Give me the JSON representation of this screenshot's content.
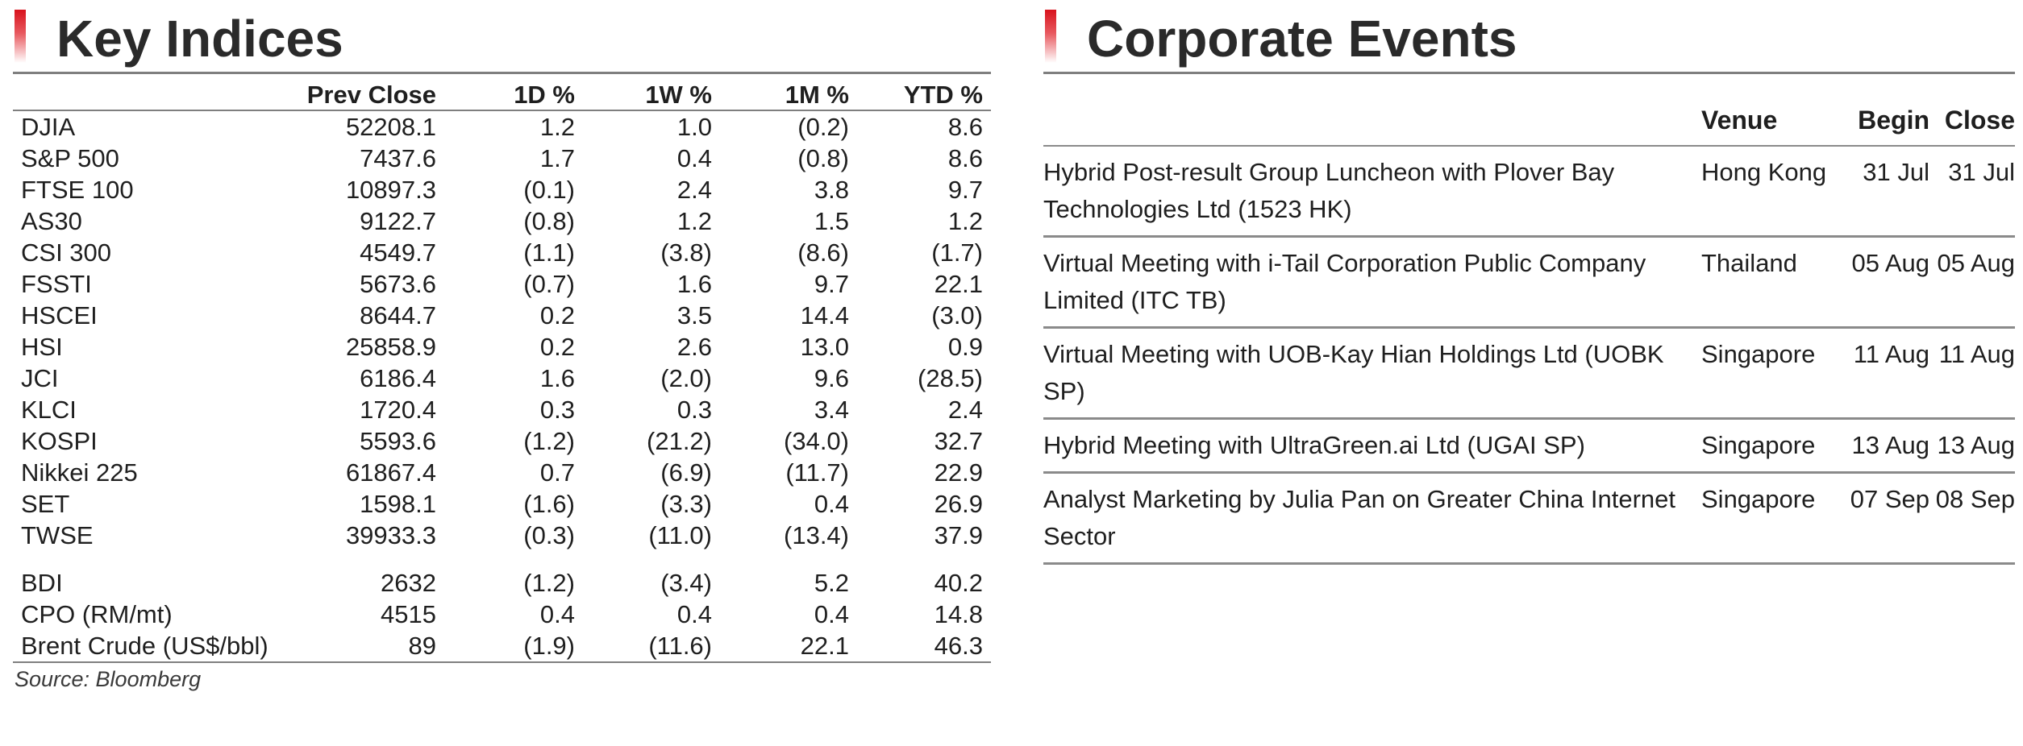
{
  "key_indices": {
    "title": "Key Indices",
    "columns": [
      "",
      "Prev Close",
      "1D %",
      "1W %",
      "1M %",
      "YTD %"
    ],
    "rows": [
      {
        "name": "DJIA",
        "prev_close": "52208.1",
        "d1": "1.2",
        "w1": "1.0",
        "m1": "(0.2)",
        "ytd": "8.6"
      },
      {
        "name": "S&P 500",
        "prev_close": "7437.6",
        "d1": "1.7",
        "w1": "0.4",
        "m1": "(0.8)",
        "ytd": "8.6"
      },
      {
        "name": "FTSE 100",
        "prev_close": "10897.3",
        "d1": "(0.1)",
        "w1": "2.4",
        "m1": "3.8",
        "ytd": "9.7"
      },
      {
        "name": "AS30",
        "prev_close": "9122.7",
        "d1": "(0.8)",
        "w1": "1.2",
        "m1": "1.5",
        "ytd": "1.2"
      },
      {
        "name": "CSI 300",
        "prev_close": "4549.7",
        "d1": "(1.1)",
        "w1": "(3.8)",
        "m1": "(8.6)",
        "ytd": "(1.7)"
      },
      {
        "name": "FSSTI",
        "prev_close": "5673.6",
        "d1": "(0.7)",
        "w1": "1.6",
        "m1": "9.7",
        "ytd": "22.1"
      },
      {
        "name": "HSCEI",
        "prev_close": "8644.7",
        "d1": "0.2",
        "w1": "3.5",
        "m1": "14.4",
        "ytd": "(3.0)"
      },
      {
        "name": "HSI",
        "prev_close": "25858.9",
        "d1": "0.2",
        "w1": "2.6",
        "m1": "13.0",
        "ytd": "0.9"
      },
      {
        "name": "JCI",
        "prev_close": "6186.4",
        "d1": "1.6",
        "w1": "(2.0)",
        "m1": "9.6",
        "ytd": "(28.5)"
      },
      {
        "name": "KLCI",
        "prev_close": "1720.4",
        "d1": "0.3",
        "w1": "0.3",
        "m1": "3.4",
        "ytd": "2.4"
      },
      {
        "name": "KOSPI",
        "prev_close": "5593.6",
        "d1": "(1.2)",
        "w1": "(21.2)",
        "m1": "(34.0)",
        "ytd": "32.7"
      },
      {
        "name": "Nikkei 225",
        "prev_close": "61867.4",
        "d1": "0.7",
        "w1": "(6.9)",
        "m1": "(11.7)",
        "ytd": "22.9"
      },
      {
        "name": "SET",
        "prev_close": "1598.1",
        "d1": "(1.6)",
        "w1": "(3.3)",
        "m1": "0.4",
        "ytd": "26.9"
      },
      {
        "name": "TWSE",
        "prev_close": "39933.3",
        "d1": "(0.3)",
        "w1": "(11.0)",
        "m1": "(13.4)",
        "ytd": "37.9"
      }
    ],
    "commodities": [
      {
        "name": "BDI",
        "prev_close": "2632",
        "d1": "(1.2)",
        "w1": "(3.4)",
        "m1": "5.2",
        "ytd": "40.2"
      },
      {
        "name": "CPO (RM/mt)",
        "prev_close": "4515",
        "d1": "0.4",
        "w1": "0.4",
        "m1": "0.4",
        "ytd": "14.8"
      },
      {
        "name": "Brent Crude (US$/bbl)",
        "prev_close": "89",
        "d1": "(1.9)",
        "w1": "(11.6)",
        "m1": "22.1",
        "ytd": "46.3"
      }
    ],
    "source": "Source: Bloomberg"
  },
  "corporate_events": {
    "title": "Corporate Events",
    "columns": [
      "",
      "Venue",
      "Begin",
      "Close"
    ],
    "rows": [
      {
        "event": "Hybrid Post-result Group Luncheon with Plover Bay Technologies Ltd (1523 HK)",
        "venue": "Hong Kong",
        "begin": "31 Jul",
        "close": "31 Jul"
      },
      {
        "event": "Virtual Meeting with i-Tail Corporation Public Company Limited (ITC TB)",
        "venue": "Thailand",
        "begin": "05 Aug",
        "close": "05 Aug"
      },
      {
        "event": "Virtual Meeting with UOB-Kay Hian Holdings Ltd (UOBK SP)",
        "venue": "Singapore",
        "begin": "11 Aug",
        "close": "11 Aug"
      },
      {
        "event": "Hybrid Meeting with UltraGreen.ai Ltd (UGAI SP)",
        "venue": "Singapore",
        "begin": "13 Aug",
        "close": "13 Aug"
      },
      {
        "event": "Analyst Marketing by Julia Pan on Greater China Internet Sector",
        "venue": "Singapore",
        "begin": "07 Sep",
        "close": "08 Sep"
      }
    ]
  },
  "colors": {
    "accent_red": "#d8121c",
    "rule_gray": "#7f7f7f",
    "text": "#1f1f1f"
  }
}
